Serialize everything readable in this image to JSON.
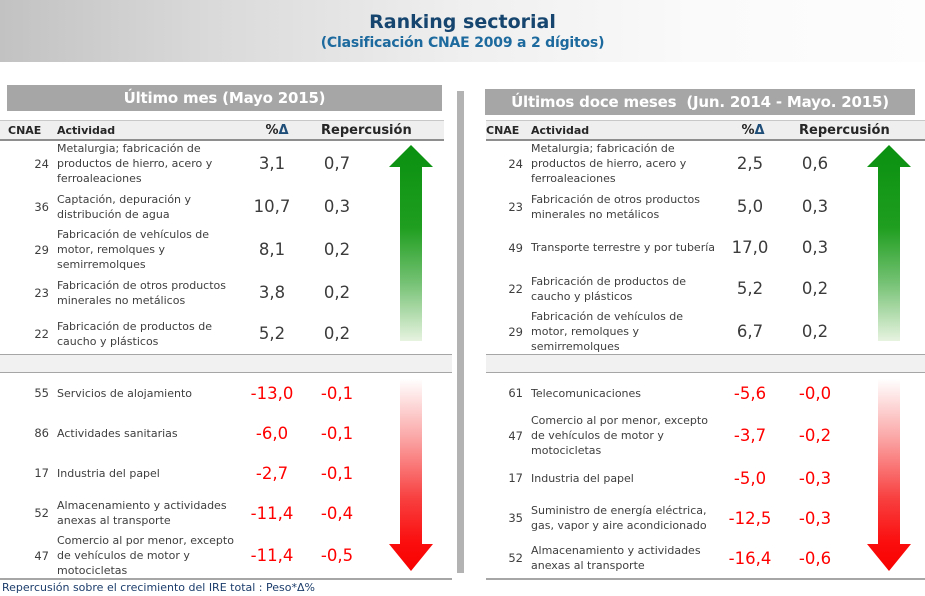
{
  "title": {
    "main": "Ranking sectorial",
    "sub": "(Clasificación CNAE 2009 a 2 dígitos)"
  },
  "columns": {
    "cnae": "CNAE",
    "activity": "Actividad",
    "pct": "%",
    "delta": "Δ",
    "repercussion": "Repercusión"
  },
  "footer_note": "Repercusión sobre el crecimiento del IRE total : Peso*Δ%",
  "colors": {
    "title": "#16466F",
    "subtitle": "#1D6A9E",
    "positive_text": "#3C3C3C",
    "negative_text": "#FF0000",
    "up_arrow": "#0D9414",
    "down_arrow": "#FF0000",
    "panel_bar": "#A6A6A6"
  },
  "panels": [
    {
      "title": "Último mes (Mayo 2015)",
      "up": [
        {
          "cnae": "24",
          "activity": "Metalurgia; fabricación de productos de hierro, acero y ferroaleaciones",
          "pct": "3,1",
          "rep": "0,7"
        },
        {
          "cnae": "36",
          "activity": "Captación, depuración y distribución de agua",
          "pct": "10,7",
          "rep": "0,3"
        },
        {
          "cnae": "29",
          "activity": "Fabricación de vehículos de motor, remolques y semirremolques",
          "pct": "8,1",
          "rep": "0,2"
        },
        {
          "cnae": "23",
          "activity": "Fabricación de otros productos minerales no metálicos",
          "pct": "3,8",
          "rep": "0,2"
        },
        {
          "cnae": "22",
          "activity": "Fabricación de productos de caucho y plásticos",
          "pct": "5,2",
          "rep": "0,2"
        }
      ],
      "down": [
        {
          "cnae": "55",
          "activity": "Servicios de alojamiento",
          "pct": "-13,0",
          "rep": "-0,1"
        },
        {
          "cnae": "86",
          "activity": "Actividades sanitarias",
          "pct": "-6,0",
          "rep": "-0,1"
        },
        {
          "cnae": "17",
          "activity": "Industria del papel",
          "pct": "-2,7",
          "rep": "-0,1"
        },
        {
          "cnae": "52",
          "activity": "Almacenamiento y actividades anexas al transporte",
          "pct": "-11,4",
          "rep": "-0,4"
        },
        {
          "cnae": "47",
          "activity": "Comercio al por menor, excepto de vehículos de motor y motocicletas",
          "pct": "-11,4",
          "rep": "-0,5"
        }
      ]
    },
    {
      "title": "Últimos doce meses  (Jun. 2014 - Mayo. 2015)",
      "up": [
        {
          "cnae": "24",
          "activity": "Metalurgia; fabricación de productos de hierro, acero y ferroaleaciones",
          "pct": "2,5",
          "rep": "0,6"
        },
        {
          "cnae": "23",
          "activity": "Fabricación de otros productos minerales no metálicos",
          "pct": "5,0",
          "rep": "0,3"
        },
        {
          "cnae": "49",
          "activity": "Transporte terrestre y por tubería",
          "pct": "17,0",
          "rep": "0,3"
        },
        {
          "cnae": "22",
          "activity": "Fabricación de productos de caucho y plásticos",
          "pct": "5,2",
          "rep": "0,2"
        },
        {
          "cnae": "29",
          "activity": "Fabricación de vehículos de motor, remolques y semirremolques",
          "pct": "6,7",
          "rep": "0,2"
        }
      ],
      "down": [
        {
          "cnae": "61",
          "activity": "Telecomunicaciones",
          "pct": "-5,6",
          "rep": "-0,0"
        },
        {
          "cnae": "47",
          "activity": "Comercio al por menor, excepto de vehículos de motor y motocicletas",
          "pct": "-3,7",
          "rep": "-0,2"
        },
        {
          "cnae": "17",
          "activity": "Industria del papel",
          "pct": "-5,0",
          "rep": "-0,3"
        },
        {
          "cnae": "35",
          "activity": "Suministro de energía eléctrica, gas, vapor y aire acondicionado",
          "pct": "-12,5",
          "rep": "-0,3"
        },
        {
          "cnae": "52",
          "activity": "Almacenamiento y actividades anexas al transporte",
          "pct": "-16,4",
          "rep": "-0,6"
        }
      ]
    }
  ]
}
